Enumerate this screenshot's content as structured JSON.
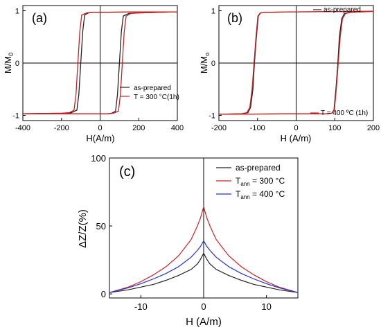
{
  "chart_data": [
    {
      "type": "line",
      "panel_label": "(a)",
      "xlabel": "H(A/m)",
      "ylabel": "M/M",
      "ylabel_sub": "0",
      "xlim": [
        -400,
        400
      ],
      "ylim": [
        -1.1,
        1.1
      ],
      "xticks": [
        -400,
        -200,
        0,
        200,
        400
      ],
      "yticks": [
        -1,
        0,
        1
      ],
      "grid": false,
      "zero_lines": true,
      "legend_position": "bottom-right",
      "series": [
        {
          "name": "as-prepared",
          "color": "#222222",
          "loop": true,
          "upper": {
            "x": [
              -400,
              -200,
              -150,
              -120,
              -110,
              -100,
              -90,
              -80,
              -60,
              -40,
              0,
              200,
              400
            ],
            "y": [
              -0.97,
              -0.96,
              -0.95,
              -0.9,
              -0.6,
              0.0,
              0.6,
              0.92,
              0.96,
              0.97,
              0.97,
              0.98,
              0.98
            ]
          },
          "lower": {
            "x": [
              400,
              200,
              150,
              120,
              110,
              100,
              90,
              80,
              60,
              40,
              0,
              -200,
              -400
            ],
            "y": [
              0.98,
              0.96,
              0.95,
              0.9,
              0.6,
              0.0,
              -0.6,
              -0.92,
              -0.96,
              -0.97,
              -0.97,
              -0.97,
              -0.97
            ]
          }
        },
        {
          "name": "T = 300 °C(1h)",
          "color": "#cc2020",
          "loop": true,
          "upper": {
            "x": [
              -400,
              -200,
              -160,
              -135,
              -125,
              -115,
              -105,
              -95,
              -70,
              -40,
              0,
              200,
              400
            ],
            "y": [
              -0.97,
              -0.96,
              -0.95,
              -0.9,
              -0.6,
              0.0,
              0.6,
              0.92,
              0.96,
              0.97,
              0.97,
              0.98,
              0.98
            ]
          },
          "lower": {
            "x": [
              400,
              200,
              160,
              135,
              125,
              115,
              105,
              95,
              70,
              40,
              0,
              -200,
              -400
            ],
            "y": [
              0.98,
              0.96,
              0.95,
              0.9,
              0.6,
              0.0,
              -0.6,
              -0.92,
              -0.96,
              -0.97,
              -0.97,
              -0.97,
              -0.97
            ]
          }
        }
      ]
    },
    {
      "type": "line",
      "panel_label": "(b)",
      "xlabel": "H (A/m)",
      "ylabel": "M/M",
      "ylabel_sub": "o",
      "xlim": [
        -200,
        200
      ],
      "ylim": [
        -1.1,
        1.1
      ],
      "xticks": [
        -200,
        -100,
        0,
        100,
        200
      ],
      "yticks": [
        -1,
        0,
        1
      ],
      "grid": false,
      "zero_lines": true,
      "legend_position": "bottom-right",
      "series": [
        {
          "name": "as-prepared",
          "color": "#222222",
          "loop": true,
          "upper": {
            "x": [
              -200,
              -140,
              -125,
              -118,
              -112,
              -108,
              -103,
              -98,
              -92,
              -80,
              0,
              200
            ],
            "y": [
              -0.98,
              -0.97,
              -0.95,
              -0.85,
              -0.5,
              0.0,
              0.5,
              0.9,
              0.96,
              0.97,
              0.98,
              0.99
            ]
          },
          "lower": {
            "x": [
              200,
              140,
              125,
              118,
              112,
              108,
              103,
              98,
              92,
              80,
              0,
              -200
            ],
            "y": [
              0.99,
              0.97,
              0.95,
              0.85,
              0.5,
              0.0,
              -0.5,
              -0.9,
              -0.96,
              -0.97,
              -0.97,
              -0.98
            ]
          }
        },
        {
          "name": "T = 400 ºC (1h)",
          "color": "#cc2020",
          "loop": true,
          "upper": {
            "x": [
              -200,
              -142,
              -128,
              -120,
              -114,
              -109,
              -104,
              -99,
              -93,
              -80,
              0,
              200
            ],
            "y": [
              -0.98,
              -0.97,
              -0.95,
              -0.85,
              -0.5,
              0.0,
              0.5,
              0.9,
              0.96,
              0.97,
              0.98,
              0.99
            ]
          },
          "lower": {
            "x": [
              200,
              142,
              128,
              120,
              114,
              109,
              104,
              99,
              93,
              80,
              0,
              -200
            ],
            "y": [
              0.99,
              0.97,
              0.95,
              0.85,
              0.5,
              0.0,
              -0.5,
              -0.9,
              -0.96,
              -0.97,
              -0.97,
              -0.98
            ]
          }
        }
      ]
    },
    {
      "type": "line",
      "panel_label": "(c)",
      "xlabel": "H (A/m)",
      "ylabel": "ΔZ/Z(%)",
      "xlim": [
        -15,
        15
      ],
      "ylim": [
        -3,
        100
      ],
      "xticks": [
        -10,
        0,
        10
      ],
      "yticks": [
        0,
        50,
        100
      ],
      "grid": false,
      "zero_lines": false,
      "vertical_line_at_x": 0,
      "legend_position": "top-right",
      "series": [
        {
          "name": "as-prepared",
          "legend_main": "as-prepared",
          "legend_sub": "",
          "legend_tail": "",
          "color": "#222222",
          "x": [
            -15,
            -12,
            -10,
            -8,
            -6,
            -4,
            -2,
            -1,
            -0.5,
            0,
            0.5,
            1,
            2,
            4,
            6,
            8,
            10,
            12,
            15
          ],
          "y": [
            1,
            3,
            5,
            7,
            10,
            13.5,
            18,
            22,
            25.5,
            30,
            25.5,
            22,
            18,
            13.5,
            10,
            7,
            5,
            3,
            1
          ]
        },
        {
          "name": "Tann = 300 °C",
          "legend_main": "T",
          "legend_sub": "ann",
          "legend_tail": " = 300 °C",
          "color": "#cc2020",
          "x": [
            -15,
            -12,
            -10,
            -8,
            -6,
            -4,
            -2,
            -1,
            -0.5,
            0,
            0.5,
            1,
            2,
            4,
            6,
            8,
            10,
            12,
            15
          ],
          "y": [
            1,
            5,
            9,
            14,
            20,
            28,
            40,
            50,
            56,
            64,
            56,
            50,
            40,
            28,
            20,
            14,
            9,
            5,
            1
          ]
        },
        {
          "name": "Tann = 400 °C",
          "legend_main": "T",
          "legend_sub": "ann",
          "legend_tail": " = 400 °C",
          "color": "#2030cc",
          "x": [
            -15,
            -12,
            -10,
            -8,
            -6,
            -4,
            -2,
            -1,
            -0.5,
            0,
            0.5,
            1,
            2,
            4,
            6,
            8,
            10,
            12,
            15
          ],
          "y": [
            1,
            4.5,
            7.5,
            11,
            15,
            20,
            27,
            32,
            35,
            39,
            35,
            32,
            27,
            20,
            15,
            11,
            7.5,
            4.5,
            1
          ]
        }
      ]
    }
  ]
}
